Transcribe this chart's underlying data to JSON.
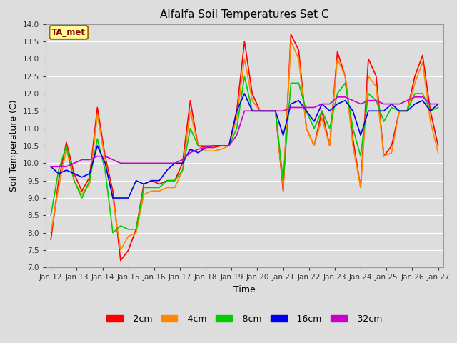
{
  "title": "Alfalfa Soil Temperatures Set C",
  "xlabel": "Time",
  "ylabel": "Soil Temperature (C)",
  "ylim": [
    7.0,
    14.0
  ],
  "yticks": [
    7.0,
    7.5,
    8.0,
    8.5,
    9.0,
    9.5,
    10.0,
    10.5,
    11.0,
    11.5,
    12.0,
    12.5,
    13.0,
    13.5,
    14.0
  ],
  "xtick_labels": [
    "Jan 12",
    "Jan 13",
    "Jan 14",
    "Jan 15",
    "Jan 16",
    "Jan 17",
    "Jan 18",
    "Jan 19",
    "Jan 20",
    "Jan 21",
    "Jan 22",
    "Jan 23",
    "Jan 24",
    "Jan 25",
    "Jan 26",
    "Jan 27"
  ],
  "background_color": "#dddddd",
  "plot_bg_color": "#dddddd",
  "grid_color": "#ffffff",
  "annotation_text": "TA_met",
  "annotation_bg": "#ffff99",
  "annotation_border": "#aa6600",
  "annotation_text_color": "#880000",
  "series": {
    "-2cm": {
      "color": "#ff0000",
      "y": [
        7.8,
        9.5,
        10.6,
        9.7,
        9.2,
        9.6,
        11.6,
        10.2,
        9.2,
        7.2,
        7.5,
        8.1,
        9.4,
        9.5,
        9.4,
        9.5,
        9.5,
        10.0,
        11.8,
        10.5,
        10.45,
        10.45,
        10.5,
        10.5,
        11.5,
        13.5,
        12.0,
        11.5,
        11.5,
        11.5,
        9.2,
        13.7,
        13.25,
        11.0,
        10.5,
        11.5,
        10.5,
        13.2,
        12.5,
        10.7,
        9.3,
        13.0,
        12.5,
        10.2,
        10.5,
        11.5,
        11.5,
        12.5,
        13.1,
        11.5,
        10.5
      ]
    },
    "-4cm": {
      "color": "#ff8800",
      "y": [
        8.0,
        9.3,
        10.4,
        9.5,
        9.1,
        9.4,
        11.4,
        10.1,
        9.0,
        7.5,
        7.9,
        8.0,
        9.1,
        9.2,
        9.2,
        9.3,
        9.3,
        9.8,
        11.5,
        10.5,
        10.35,
        10.35,
        10.4,
        10.5,
        11.3,
        13.0,
        11.8,
        11.5,
        11.5,
        11.5,
        9.3,
        13.5,
        13.0,
        11.0,
        10.5,
        11.3,
        10.5,
        13.0,
        12.5,
        10.5,
        9.3,
        12.5,
        12.2,
        10.2,
        10.3,
        11.5,
        11.5,
        12.3,
        12.9,
        11.2,
        10.3
      ]
    },
    "-8cm": {
      "color": "#00cc00",
      "y": [
        8.5,
        9.8,
        10.5,
        9.5,
        9.0,
        9.5,
        10.7,
        9.8,
        8.0,
        8.2,
        8.1,
        8.1,
        9.3,
        9.3,
        9.3,
        9.5,
        9.5,
        9.8,
        11.0,
        10.5,
        10.5,
        10.5,
        10.5,
        10.5,
        11.0,
        12.5,
        11.5,
        11.5,
        11.5,
        11.5,
        9.5,
        12.3,
        12.3,
        11.5,
        11.0,
        11.5,
        11.0,
        12.0,
        12.3,
        11.0,
        10.2,
        12.0,
        11.8,
        11.2,
        11.6,
        11.5,
        11.5,
        12.0,
        12.0,
        11.5,
        11.6
      ]
    },
    "-16cm": {
      "color": "#0000ee",
      "y": [
        9.9,
        9.7,
        9.8,
        9.7,
        9.6,
        9.7,
        10.5,
        10.0,
        9.0,
        9.0,
        9.0,
        9.5,
        9.4,
        9.5,
        9.5,
        9.8,
        10.0,
        10.0,
        10.4,
        10.3,
        10.45,
        10.5,
        10.5,
        10.5,
        11.5,
        12.0,
        11.5,
        11.5,
        11.5,
        11.5,
        10.8,
        11.7,
        11.8,
        11.5,
        11.2,
        11.7,
        11.5,
        11.7,
        11.8,
        11.5,
        10.8,
        11.5,
        11.5,
        11.5,
        11.7,
        11.5,
        11.5,
        11.7,
        11.8,
        11.5,
        11.7
      ]
    },
    "-32cm": {
      "color": "#cc00cc",
      "y": [
        9.9,
        9.9,
        9.9,
        10.0,
        10.1,
        10.1,
        10.2,
        10.2,
        10.1,
        10.0,
        10.0,
        10.0,
        10.0,
        10.0,
        10.0,
        10.0,
        10.0,
        10.1,
        10.3,
        10.4,
        10.45,
        10.5,
        10.5,
        10.5,
        10.8,
        11.5,
        11.5,
        11.5,
        11.5,
        11.5,
        11.5,
        11.6,
        11.6,
        11.6,
        11.6,
        11.7,
        11.7,
        11.9,
        11.9,
        11.8,
        11.7,
        11.8,
        11.8,
        11.7,
        11.7,
        11.7,
        11.8,
        11.9,
        11.9,
        11.7,
        11.7
      ]
    }
  },
  "legend_entries": [
    "-2cm",
    "-4cm",
    "-8cm",
    "-16cm",
    "-32cm"
  ],
  "legend_colors": [
    "#ff0000",
    "#ff8800",
    "#00cc00",
    "#0000ee",
    "#cc00cc"
  ]
}
